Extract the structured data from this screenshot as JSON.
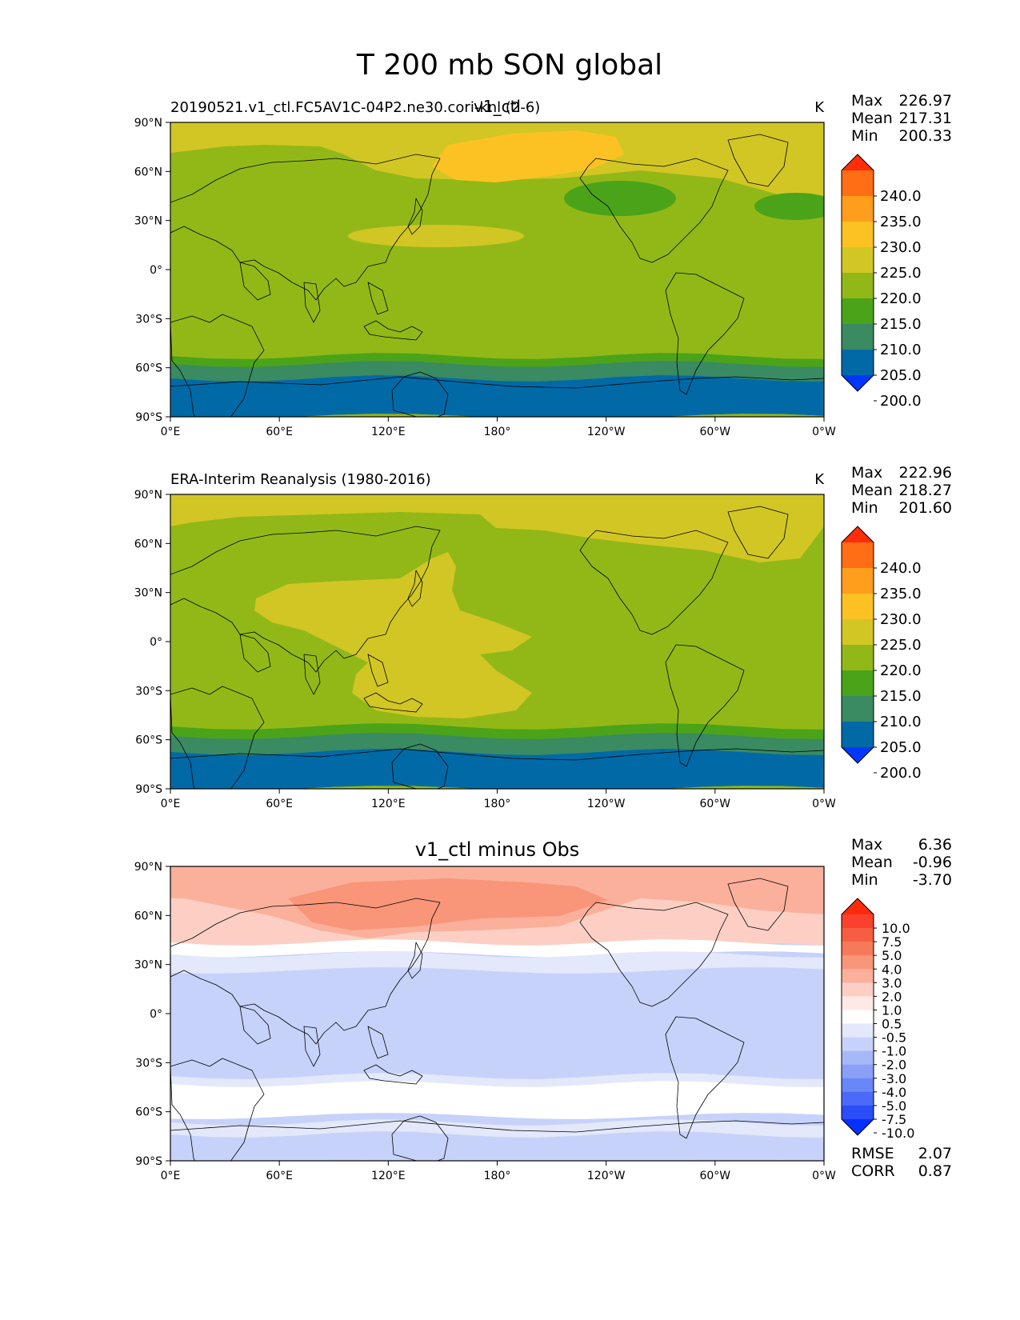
{
  "chart_data": {
    "type": "heatmap",
    "title": "T 200 mb SON global",
    "x_ticks": [
      "0°E",
      "60°E",
      "120°E",
      "180°",
      "120°W",
      "60°W",
      "0°W"
    ],
    "y_ticks": [
      "90°N",
      "60°N",
      "30°N",
      "0°",
      "30°S",
      "60°S",
      "90°S"
    ],
    "xlim": [
      0,
      360
    ],
    "ylim": [
      -90,
      90
    ],
    "panels": [
      {
        "id": "test",
        "left_title": "20190521.v1_ctl.FC5AV1C-04P2.ne30.cori-knl (2-6)",
        "center_title": "v1_ctl",
        "units": "K",
        "stats": [
          {
            "label": "Max",
            "value": "226.97"
          },
          {
            "label": "Mean",
            "value": "217.31"
          },
          {
            "label": "Min",
            "value": "200.33"
          }
        ],
        "colorbar": {
          "levels": [
            "240.0",
            "235.0",
            "230.0",
            "225.0",
            "220.0",
            "215.0",
            "210.0",
            "205.0",
            "200.0"
          ],
          "colors": [
            "#ff2d0a",
            "#ff6d14",
            "#ff9e1c",
            "#fcc223",
            "#d2c624",
            "#92b817",
            "#4ba319",
            "#3a8a62",
            "#016aa6",
            "#0137fb"
          ]
        },
        "field": {
          "kind": "model",
          "colors": {
            "c200": "#016aa6",
            "c205": "#3a8a62",
            "c210": "#4ba319",
            "c215": "#92b817",
            "c220": "#d2c624",
            "c225": "#fcc223"
          }
        }
      },
      {
        "id": "ref",
        "left_title": "ERA-Interim Reanalysis (1980-2016)",
        "center_title": "",
        "units": "K",
        "stats": [
          {
            "label": "Max",
            "value": "222.96"
          },
          {
            "label": "Mean",
            "value": "218.27"
          },
          {
            "label": "Min",
            "value": "201.60"
          }
        ],
        "colorbar": {
          "levels": [
            "240.0",
            "235.0",
            "230.0",
            "225.0",
            "220.0",
            "215.0",
            "210.0",
            "205.0",
            "200.0"
          ],
          "colors": [
            "#ff2d0a",
            "#ff6d14",
            "#ff9e1c",
            "#fcc223",
            "#d2c624",
            "#92b817",
            "#4ba319",
            "#3a8a62",
            "#016aa6",
            "#0137fb"
          ]
        },
        "field": {
          "kind": "obs",
          "colors": {
            "c200": "#016aa6",
            "c205": "#3a8a62",
            "c210": "#4ba319",
            "c215": "#92b817",
            "c220": "#d2c624"
          }
        }
      },
      {
        "id": "diff",
        "left_title": "",
        "center_title": "v1_ctl minus Obs",
        "units": "",
        "stats": [
          {
            "label": "Max",
            "value": "6.36"
          },
          {
            "label": "Mean",
            "value": "-0.96"
          },
          {
            "label": "Min",
            "value": "-3.70"
          }
        ],
        "bottom_stats": [
          {
            "label": "RMSE",
            "value": "2.07"
          },
          {
            "label": "CORR",
            "value": "0.87"
          }
        ],
        "colorbar": {
          "levels": [
            "10.0",
            "7.5",
            "5.0",
            "4.0",
            "3.0",
            "2.0",
            "1.0",
            "0.5",
            "-0.5",
            "-1.0",
            "-2.0",
            "-3.0",
            "-4.0",
            "-5.0",
            "-7.5",
            "-10.0"
          ],
          "colors": [
            "#ff2a0c",
            "#f9412e",
            "#f65e44",
            "#f7795c",
            "#f99579",
            "#fbb09c",
            "#fdcfc4",
            "#fdeae6",
            "#ffffff",
            "#e3e8fa",
            "#c6d2fa",
            "#a7b8f8",
            "#8aa0f7",
            "#6a87f7",
            "#4a6af7",
            "#2a4df8",
            "#0830fb"
          ]
        },
        "field": {
          "kind": "diff",
          "colors": {
            "n3": "#8aa0f7",
            "n2": "#a7b8f8",
            "n1": "#c6d2fa",
            "n05": "#e3e8fa",
            "z": "#ffffff",
            "p05": "#fdeae6",
            "p1": "#fdcfc4",
            "p2": "#fbb09c",
            "p3": "#f99579",
            "p4": "#f7795c",
            "p5": "#f65e44"
          }
        }
      }
    ]
  }
}
